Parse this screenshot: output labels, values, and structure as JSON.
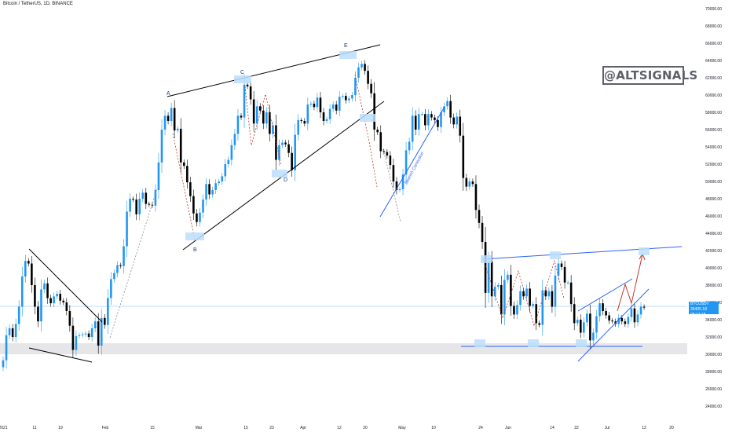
{
  "header": {
    "symbol": "Bitcoin / TetherUS, 1D, BINANCE"
  },
  "watermark": "@ALTSIGNALS",
  "price_tag": {
    "symbol": "BTCUSDT",
    "price": "35405.18",
    "countdown": "08:14:18"
  },
  "pattern_labels": [
    "A",
    "B",
    "C",
    "D",
    "E"
  ],
  "annotation": "Bearish Correction",
  "colors": {
    "bull": "#2196f3",
    "bear": "#000000",
    "trendline": "#000000",
    "channel": "#2962ff",
    "target_arrow": "#c0392b",
    "support_zone": "#e6e6e9",
    "price_line": "#2196f3",
    "highlight": "#bbdefb"
  },
  "chart_data": {
    "type": "candlestick",
    "title": "Bitcoin / TetherUS, 1D, BINANCE",
    "ylim": [
      23000,
      70500
    ],
    "y_ticks": [
      24000,
      26000,
      28000,
      30000,
      32000,
      34000,
      36000,
      38000,
      40000,
      42000,
      44000,
      46000,
      48000,
      50000,
      52000,
      54000,
      56000,
      58000,
      60000,
      62000,
      64000,
      66000,
      68000,
      70000
    ],
    "x_ticks": [
      "2021",
      "11",
      "19",
      "Feb",
      "15",
      "Mar",
      "15",
      "23",
      "Apr",
      "12",
      "20",
      "May",
      "10",
      "24",
      "Jun",
      "14",
      "22",
      "Jul",
      "12",
      "20"
    ],
    "current_price": 35405.18,
    "support_zone": [
      30000,
      31300
    ],
    "closes": [
      29300,
      32200,
      33000,
      32000,
      33500,
      35500,
      39000,
      40800,
      40500,
      38000,
      35500,
      33800,
      37500,
      38200,
      36500,
      35900,
      36700,
      37000,
      36200,
      36000,
      35000,
      33300,
      30500,
      32100,
      32200,
      32300,
      32400,
      32000,
      33000,
      33800,
      31000,
      34200,
      33400,
      36500,
      38700,
      39400,
      40300,
      40200,
      42500,
      46500,
      48000,
      47900,
      46200,
      48000,
      48700,
      47400,
      47300,
      47200,
      49000,
      52200,
      56000,
      57600,
      57000,
      58500,
      55900,
      56100,
      52200,
      51800,
      49900,
      48300,
      46300,
      45300,
      46400,
      47900,
      49700,
      48500,
      49000,
      49800,
      50000,
      50600,
      52000,
      52500,
      54200,
      55500,
      57600,
      57400,
      61200,
      61000,
      59500,
      56700,
      58700,
      58200,
      56700,
      58000,
      55500,
      56500,
      52500,
      54200,
      54500,
      54300,
      53300,
      51300,
      55400,
      57100,
      57000,
      56700,
      58900,
      59000,
      58600,
      59700,
      58000,
      57000,
      57200,
      58400,
      58900,
      58200,
      59800,
      59900,
      59400,
      59600,
      60000,
      62000,
      63200,
      63600,
      62800,
      61300,
      60200,
      56000,
      55700,
      53500,
      53400,
      53000,
      51900,
      50000,
      49000,
      49100,
      50800,
      53600,
      54600,
      57600,
      56000,
      57800,
      57800,
      56500,
      57800,
      57400,
      57100,
      56300,
      58000,
      58700,
      59300,
      57400,
      56600,
      57500,
      55300,
      50400,
      49400,
      50000,
      49700,
      46700,
      45200,
      43000,
      37100,
      40700,
      36700,
      37800,
      38000,
      34600,
      38600,
      39200,
      35600,
      34600,
      35700,
      37300,
      36700,
      37600,
      35600,
      35800,
      33600,
      33400,
      37400,
      36700,
      37300,
      35500,
      39100,
      40500,
      40100,
      38300,
      38300,
      35800,
      33600,
      34000,
      32500,
      33700,
      34700,
      31600,
      32500,
      34400,
      35900,
      35000,
      34500,
      33900,
      33800,
      33500,
      34200,
      33800,
      33500,
      34300,
      35300,
      33700,
      34600,
      35500,
      35400
    ]
  }
}
